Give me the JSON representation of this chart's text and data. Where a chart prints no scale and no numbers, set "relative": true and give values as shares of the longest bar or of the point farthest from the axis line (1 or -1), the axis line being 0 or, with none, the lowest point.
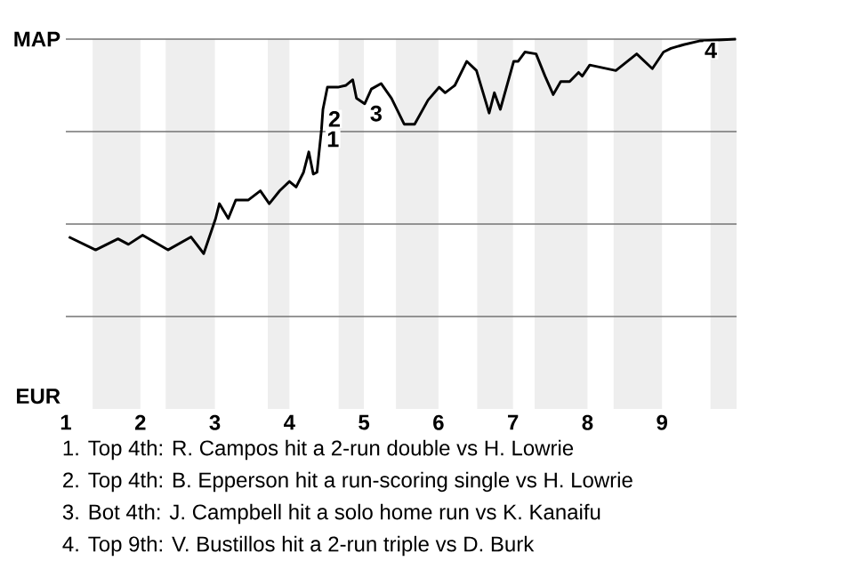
{
  "chart_data": {
    "type": "line",
    "color": "#000000",
    "relative": true,
    "ref_lines": [
      {
        "axis": "y",
        "value": 1,
        "label": "MAP",
        "color": "#737373"
      },
      {
        "axis": "y",
        "value": 0.5,
        "color": "#737373"
      },
      {
        "axis": "y",
        "value": 0,
        "color": "#737373"
      },
      {
        "axis": "y",
        "value": -0.5,
        "color": "#737373"
      }
    ],
    "xlim": [
      1,
      10
    ],
    "xticks": [
      1,
      2,
      3,
      4,
      5,
      6,
      7,
      8,
      9
    ],
    "bands": [
      {
        "axis": "x",
        "from": 1.36,
        "to": 2,
        "color": "#eeeeee"
      },
      {
        "axis": "x",
        "from": 2.34,
        "to": 3,
        "color": "#eeeeee"
      },
      {
        "axis": "x",
        "from": 3.71,
        "to": 4,
        "color": "#eeeeee"
      },
      {
        "axis": "x",
        "from": 4.66,
        "to": 5,
        "color": "#eeeeee"
      },
      {
        "axis": "x",
        "from": 5.43,
        "to": 6,
        "color": "#eeeeee"
      },
      {
        "axis": "x",
        "from": 6.52,
        "to": 7,
        "color": "#eeeeee"
      },
      {
        "axis": "x",
        "from": 7.29,
        "to": 8,
        "color": "#eeeeee"
      },
      {
        "axis": "x",
        "from": 8.35,
        "to": 9,
        "color": "#eeeeee"
      },
      {
        "axis": "x",
        "from": 9.65,
        "to": 10,
        "color": "#eeeeee"
      }
    ],
    "x": [
      1.04,
      1.4,
      1.7,
      1.84,
      2.03,
      2.37,
      2.68,
      2.85,
      3.01,
      3.06,
      3.18,
      3.28,
      3.45,
      3.61,
      3.73,
      3.87,
      4.0,
      4.09,
      4.19,
      4.26,
      4.32,
      4.37,
      4.43,
      4.45,
      4.51,
      4.65,
      4.76,
      4.85,
      4.9,
      5.01,
      5.1,
      5.23,
      5.37,
      5.54,
      5.68,
      5.86,
      6.01,
      6.09,
      6.22,
      6.38,
      6.51,
      6.68,
      6.75,
      6.83,
      7.01,
      7.07,
      7.16,
      7.31,
      7.43,
      7.54,
      7.64,
      7.76,
      7.88,
      7.93,
      8.03,
      8.38,
      8.66,
      8.87,
      9.02,
      9.12,
      9.29,
      9.5,
      9.99
    ],
    "values": [
      -0.07,
      -0.14,
      -0.08,
      -0.11,
      -0.06,
      -0.14,
      -0.07,
      -0.16,
      0.03,
      0.11,
      0.03,
      0.13,
      0.13,
      0.18,
      0.11,
      0.18,
      0.23,
      0.2,
      0.28,
      0.39,
      0.27,
      0.28,
      0.51,
      0.62,
      0.74,
      0.74,
      0.75,
      0.78,
      0.68,
      0.65,
      0.73,
      0.76,
      0.68,
      0.54,
      0.54,
      0.67,
      0.74,
      0.71,
      0.75,
      0.88,
      0.83,
      0.6,
      0.71,
      0.62,
      0.88,
      0.88,
      0.93,
      0.92,
      0.8,
      0.7,
      0.77,
      0.77,
      0.82,
      0.8,
      0.86,
      0.83,
      0.92,
      0.84,
      0.93,
      0.95,
      0.97,
      0.99,
      1
    ],
    "annotations": [
      "EUR",
      {
        "text": "1",
        "x": 4.43,
        "y": 0.51
      },
      {
        "text": "2",
        "x": 4.45,
        "y": 0.62
      },
      {
        "text": "3",
        "x": 5.01,
        "y": 0.65
      },
      {
        "text": "4",
        "x": 9.5,
        "y": 0.99
      },
      "1. Top 4th: R. Campos hit a 2-run double vs H. Lowrie",
      "2. Top 4th: B. Epperson hit a run-scoring single vs H. Lowrie",
      "3. Bot 4th: J. Campbell hit a solo home run vs K. Kanaifu",
      "4. Top 9th: V. Bustillos hit a 2-run triple vs D. Burk"
    ]
  }
}
